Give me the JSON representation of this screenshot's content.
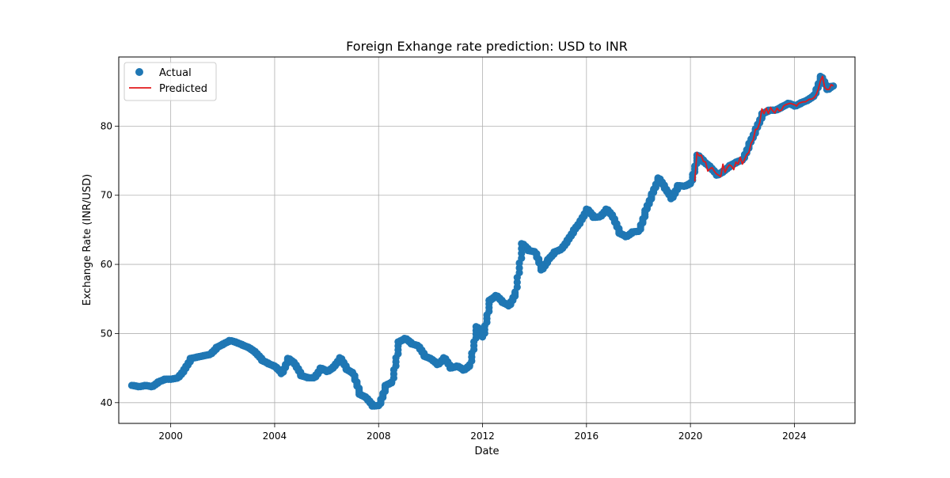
{
  "chart_data": {
    "type": "line",
    "title": "Foreign Exhange rate prediction: USD to INR",
    "xlabel": "Date",
    "ylabel": "Exchange Rate (INR/USD)",
    "xlim": [
      "1998-01-01",
      "2026-05-01"
    ],
    "ylim": [
      37,
      90
    ],
    "x_ticks": [
      "2000",
      "2004",
      "2008",
      "2012",
      "2016",
      "2020",
      "2024"
    ],
    "y_ticks": [
      40,
      50,
      60,
      70,
      80
    ],
    "grid": true,
    "legend_position": "upper-left",
    "series": [
      {
        "name": "Actual",
        "style": "points",
        "color": "#1f77b4",
        "points": [
          [
            "1998-08-01",
            42.5
          ],
          [
            "1998-11-01",
            42.3
          ],
          [
            "1999-02-01",
            42.5
          ],
          [
            "1999-05-01",
            42.3
          ],
          [
            "1999-08-01",
            43.0
          ],
          [
            "1999-11-01",
            43.4
          ],
          [
            "2000-02-01",
            43.4
          ],
          [
            "2000-05-01",
            43.6
          ],
          [
            "2000-08-01",
            44.8
          ],
          [
            "2000-11-01",
            46.4
          ],
          [
            "2001-02-01",
            46.6
          ],
          [
            "2001-05-01",
            46.8
          ],
          [
            "2001-08-01",
            47.0
          ],
          [
            "2001-11-01",
            48.0
          ],
          [
            "2002-02-01",
            48.5
          ],
          [
            "2002-05-01",
            49.0
          ],
          [
            "2002-08-01",
            48.7
          ],
          [
            "2002-11-01",
            48.3
          ],
          [
            "2003-02-01",
            47.9
          ],
          [
            "2003-05-01",
            47.2
          ],
          [
            "2003-08-01",
            46.1
          ],
          [
            "2003-11-01",
            45.6
          ],
          [
            "2004-02-01",
            45.2
          ],
          [
            "2004-05-01",
            44.2
          ],
          [
            "2004-08-01",
            46.4
          ],
          [
            "2004-11-01",
            45.6
          ],
          [
            "2005-02-01",
            43.9
          ],
          [
            "2005-05-01",
            43.6
          ],
          [
            "2005-08-01",
            43.6
          ],
          [
            "2005-11-01",
            45.0
          ],
          [
            "2006-02-01",
            44.5
          ],
          [
            "2006-05-01",
            45.2
          ],
          [
            "2006-08-01",
            46.5
          ],
          [
            "2006-11-01",
            44.8
          ],
          [
            "2007-02-01",
            44.2
          ],
          [
            "2007-05-01",
            41.2
          ],
          [
            "2007-08-01",
            40.7
          ],
          [
            "2007-11-01",
            39.5
          ],
          [
            "2008-02-01",
            39.6
          ],
          [
            "2008-05-01",
            42.5
          ],
          [
            "2008-08-01",
            43.0
          ],
          [
            "2008-11-01",
            48.8
          ],
          [
            "2009-02-01",
            49.3
          ],
          [
            "2009-05-01",
            48.5
          ],
          [
            "2009-08-01",
            48.2
          ],
          [
            "2009-11-01",
            46.7
          ],
          [
            "2010-02-01",
            46.3
          ],
          [
            "2010-05-01",
            45.5
          ],
          [
            "2010-08-01",
            46.5
          ],
          [
            "2010-11-01",
            45.0
          ],
          [
            "2011-02-01",
            45.3
          ],
          [
            "2011-05-01",
            44.7
          ],
          [
            "2011-08-01",
            45.5
          ],
          [
            "2011-11-01",
            51.0
          ],
          [
            "2012-02-01",
            49.5
          ],
          [
            "2012-05-01",
            54.8
          ],
          [
            "2012-08-01",
            55.5
          ],
          [
            "2012-11-01",
            54.5
          ],
          [
            "2013-02-01",
            54.0
          ],
          [
            "2013-05-01",
            56.0
          ],
          [
            "2013-08-01",
            63.0
          ],
          [
            "2013-11-01",
            62.0
          ],
          [
            "2014-02-01",
            61.8
          ],
          [
            "2014-05-01",
            59.2
          ],
          [
            "2014-08-01",
            60.7
          ],
          [
            "2014-11-01",
            61.8
          ],
          [
            "2015-02-01",
            62.2
          ],
          [
            "2015-05-01",
            63.5
          ],
          [
            "2015-08-01",
            65.0
          ],
          [
            "2015-11-01",
            66.3
          ],
          [
            "2016-02-01",
            68.0
          ],
          [
            "2016-05-01",
            66.8
          ],
          [
            "2016-08-01",
            66.9
          ],
          [
            "2016-11-01",
            68.0
          ],
          [
            "2017-02-01",
            66.8
          ],
          [
            "2017-05-01",
            64.5
          ],
          [
            "2017-08-01",
            64.0
          ],
          [
            "2017-11-01",
            64.7
          ],
          [
            "2018-02-01",
            64.8
          ],
          [
            "2018-05-01",
            67.8
          ],
          [
            "2018-08-01",
            70.2
          ],
          [
            "2018-11-01",
            72.5
          ],
          [
            "2019-02-01",
            71.0
          ],
          [
            "2019-05-01",
            69.5
          ],
          [
            "2019-08-01",
            71.4
          ],
          [
            "2019-11-01",
            71.3
          ],
          [
            "2020-02-01",
            71.8
          ],
          [
            "2020-05-01",
            75.8
          ],
          [
            "2020-08-01",
            74.8
          ],
          [
            "2020-11-01",
            74.0
          ],
          [
            "2021-02-01",
            72.9
          ],
          [
            "2021-05-01",
            73.5
          ],
          [
            "2021-08-01",
            74.3
          ],
          [
            "2021-11-01",
            74.8
          ],
          [
            "2022-02-01",
            75.2
          ],
          [
            "2022-05-01",
            77.5
          ],
          [
            "2022-08-01",
            79.6
          ],
          [
            "2022-11-01",
            81.8
          ],
          [
            "2023-02-01",
            82.3
          ],
          [
            "2023-05-01",
            82.3
          ],
          [
            "2023-08-01",
            82.8
          ],
          [
            "2023-11-01",
            83.3
          ],
          [
            "2024-02-01",
            82.9
          ],
          [
            "2024-05-01",
            83.4
          ],
          [
            "2024-08-01",
            83.8
          ],
          [
            "2024-11-01",
            84.5
          ],
          [
            "2025-02-01",
            87.2
          ],
          [
            "2025-05-01",
            85.3
          ],
          [
            "2025-07-01",
            85.8
          ]
        ]
      },
      {
        "name": "Predicted",
        "style": "line",
        "color": "#e31a1c",
        "points": [
          [
            "2020-03-01",
            72.0
          ],
          [
            "2020-04-01",
            76.2
          ],
          [
            "2020-05-01",
            75.7
          ],
          [
            "2020-06-01",
            75.8
          ],
          [
            "2020-07-01",
            74.9
          ],
          [
            "2020-08-01",
            74.8
          ],
          [
            "2020-09-01",
            73.5
          ],
          [
            "2020-10-01",
            73.8
          ],
          [
            "2020-11-01",
            74.0
          ],
          [
            "2020-12-01",
            73.5
          ],
          [
            "2021-01-01",
            73.1
          ],
          [
            "2021-02-01",
            72.9
          ],
          [
            "2021-03-01",
            72.7
          ],
          [
            "2021-04-01",
            74.5
          ],
          [
            "2021-05-01",
            73.3
          ],
          [
            "2021-06-01",
            74.0
          ],
          [
            "2021-07-01",
            74.4
          ],
          [
            "2021-08-01",
            74.2
          ],
          [
            "2021-09-01",
            73.7
          ],
          [
            "2021-10-01",
            74.8
          ],
          [
            "2021-11-01",
            74.5
          ],
          [
            "2021-12-01",
            75.5
          ],
          [
            "2022-01-01",
            74.5
          ],
          [
            "2022-02-01",
            75.2
          ],
          [
            "2022-03-01",
            75.9
          ],
          [
            "2022-04-01",
            76.2
          ],
          [
            "2022-05-01",
            77.5
          ],
          [
            "2022-06-01",
            78.0
          ],
          [
            "2022-07-01",
            79.5
          ],
          [
            "2022-08-01",
            79.6
          ],
          [
            "2022-09-01",
            80.5
          ],
          [
            "2022-10-01",
            82.5
          ],
          [
            "2022-11-01",
            81.8
          ],
          [
            "2022-12-01",
            82.6
          ],
          [
            "2023-01-01",
            81.8
          ],
          [
            "2023-02-01",
            82.7
          ],
          [
            "2023-03-01",
            82.2
          ],
          [
            "2023-04-01",
            81.9
          ],
          [
            "2023-05-01",
            82.6
          ],
          [
            "2023-06-01",
            82.2
          ],
          [
            "2023-07-01",
            82.3
          ],
          [
            "2023-08-01",
            82.9
          ],
          [
            "2023-09-01",
            83.1
          ],
          [
            "2023-10-01",
            83.2
          ],
          [
            "2023-11-01",
            83.3
          ],
          [
            "2023-12-01",
            83.2
          ],
          [
            "2024-01-01",
            83.1
          ],
          [
            "2024-02-01",
            82.9
          ],
          [
            "2024-03-01",
            83.3
          ],
          [
            "2024-04-01",
            83.4
          ],
          [
            "2024-05-01",
            83.5
          ],
          [
            "2024-06-01",
            83.5
          ],
          [
            "2024-07-01",
            83.7
          ],
          [
            "2024-08-01",
            83.9
          ],
          [
            "2024-09-01",
            83.9
          ],
          [
            "2024-10-01",
            84.1
          ],
          [
            "2024-11-01",
            84.5
          ],
          [
            "2024-12-01",
            85.3
          ],
          [
            "2025-01-01",
            86.5
          ],
          [
            "2025-02-01",
            87.2
          ],
          [
            "2025-03-01",
            85.6
          ],
          [
            "2025-04-01",
            85.3
          ],
          [
            "2025-05-01",
            85.3
          ],
          [
            "2025-06-01",
            86.0
          ],
          [
            "2025-07-01",
            85.8
          ]
        ]
      }
    ]
  }
}
